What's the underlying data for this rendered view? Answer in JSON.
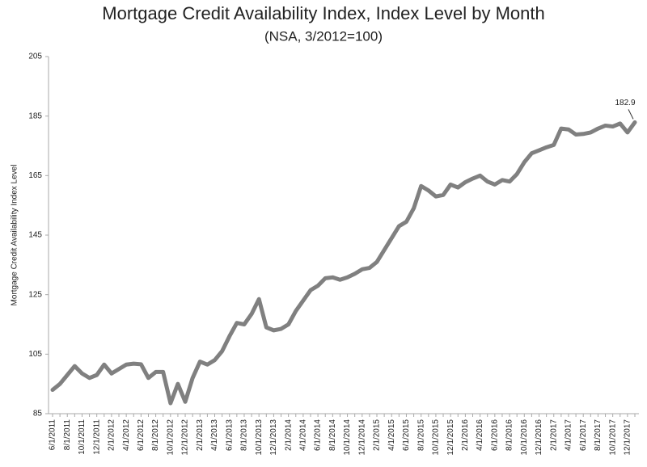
{
  "chart_data": {
    "type": "line",
    "title": "Mortgage Credit Availability Index, Index Level by Month",
    "subtitle": "(NSA, 3/2012=100)",
    "y_label": "Mortgage Credit Availability Index Level",
    "annotation": "182.9",
    "categories": [
      "6/1/2011",
      null,
      "8/1/2011",
      null,
      "10/1/2011",
      null,
      "12/1/2011",
      null,
      "2/1/2012",
      null,
      "4/1/2012",
      null,
      "6/1/2012",
      null,
      "8/1/2012",
      null,
      "10/1/2012",
      null,
      "12/1/2012",
      null,
      "2/1/2013",
      null,
      "4/1/2013",
      null,
      "6/1/2013",
      null,
      "8/1/2013",
      null,
      "10/1/2013",
      null,
      "12/1/2013",
      null,
      "2/1/2014",
      null,
      "4/1/2014",
      null,
      "6/1/2014",
      null,
      "8/1/2014",
      null,
      "10/1/2014",
      null,
      "12/1/2014",
      null,
      "2/1/2015",
      null,
      "4/1/2015",
      null,
      "6/1/2015",
      null,
      "8/1/2015",
      null,
      "10/1/2015",
      null,
      "12/1/2015",
      null,
      "2/1/2016",
      null,
      "4/1/2016",
      null,
      "6/1/2016",
      null,
      "8/1/2016",
      null,
      "10/1/2016",
      null,
      "12/1/2016",
      null,
      "2/1/2017",
      null,
      "4/1/2017",
      null,
      "6/1/2017",
      null,
      "8/1/2017",
      null,
      "10/1/2017",
      null,
      "12/1/2017",
      null
    ],
    "values": [
      93,
      95,
      98,
      101,
      98.5,
      97,
      98,
      101.5,
      98.5,
      100,
      101.5,
      101.8,
      101.6,
      97,
      99,
      99,
      88.5,
      95,
      89,
      97,
      102.5,
      101.5,
      103,
      106,
      111,
      115.5,
      115,
      118.5,
      123.5,
      114,
      113,
      113.5,
      115,
      119.5,
      123,
      126.5,
      128,
      130.5,
      130.8,
      130,
      130.8,
      132,
      133.5,
      134,
      136,
      140,
      144,
      148,
      149.5,
      154,
      161.5,
      160,
      158,
      158.5,
      162,
      161,
      162.8,
      164,
      165,
      163,
      162,
      163.5,
      163,
      165.5,
      169.5,
      172.5,
      173.5,
      174.5,
      175.3,
      180.8,
      180.5,
      178.8,
      179,
      179.5,
      180.8,
      181.8,
      181.5,
      182.5,
      179.5,
      182.9
    ],
    "color": "#808080",
    "ylim": [
      85,
      205
    ],
    "yticks": [
      85,
      105,
      125,
      145,
      165,
      185,
      205
    ],
    "grid": false
  }
}
